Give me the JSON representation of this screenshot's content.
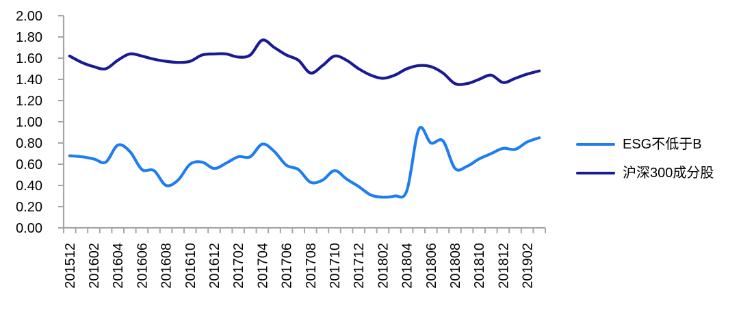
{
  "chart_data": {
    "type": "line",
    "title": "",
    "xlabel": "",
    "ylabel": "",
    "grid": false,
    "legend_position": "right",
    "axis_color": "#A6A6A6",
    "label_color": "#000000",
    "ylim": [
      0.0,
      2.0
    ],
    "ytick_step": 0.2,
    "ytick_labels": [
      "0.00",
      "0.20",
      "0.40",
      "0.60",
      "0.80",
      "1.00",
      "1.20",
      "1.40",
      "1.60",
      "1.80",
      "2.00"
    ],
    "x_labeled_every": 2,
    "x": [
      "201512",
      "201601",
      "201602",
      "201603",
      "201604",
      "201605",
      "201606",
      "201607",
      "201608",
      "201609",
      "201610",
      "201611",
      "201612",
      "201701",
      "201702",
      "201703",
      "201704",
      "201705",
      "201706",
      "201707",
      "201708",
      "201709",
      "201710",
      "201711",
      "201712",
      "201801",
      "201802",
      "201803",
      "201804",
      "201805",
      "201806",
      "201807",
      "201808",
      "201809",
      "201810",
      "201811",
      "201812",
      "201901",
      "201902",
      "201903"
    ],
    "visible_x_tick_labels": [
      "201512",
      "201602",
      "201604",
      "201606",
      "201608",
      "201610",
      "201612",
      "201702",
      "201704",
      "201706",
      "201708",
      "201710",
      "201712",
      "201802",
      "201804",
      "201806",
      "201808",
      "201810",
      "201812",
      "201902"
    ],
    "series": [
      {
        "name": "ESG不低于B",
        "color": "#1E7DF0",
        "values": [
          0.68,
          0.67,
          0.65,
          0.62,
          0.78,
          0.72,
          0.55,
          0.54,
          0.4,
          0.45,
          0.6,
          0.62,
          0.56,
          0.61,
          0.67,
          0.67,
          0.79,
          0.72,
          0.59,
          0.55,
          0.43,
          0.45,
          0.54,
          0.46,
          0.39,
          0.31,
          0.29,
          0.3,
          0.35,
          0.93,
          0.8,
          0.82,
          0.56,
          0.58,
          0.65,
          0.7,
          0.75,
          0.74,
          0.81,
          0.85
        ]
      },
      {
        "name": "沪深300成分股",
        "color": "#1A1A94",
        "values": [
          1.62,
          1.56,
          1.52,
          1.5,
          1.58,
          1.64,
          1.62,
          1.59,
          1.57,
          1.56,
          1.57,
          1.63,
          1.64,
          1.64,
          1.61,
          1.63,
          1.77,
          1.7,
          1.63,
          1.58,
          1.46,
          1.53,
          1.62,
          1.58,
          1.5,
          1.44,
          1.41,
          1.44,
          1.5,
          1.53,
          1.52,
          1.46,
          1.36,
          1.36,
          1.4,
          1.44,
          1.37,
          1.41,
          1.45,
          1.48
        ]
      }
    ]
  }
}
